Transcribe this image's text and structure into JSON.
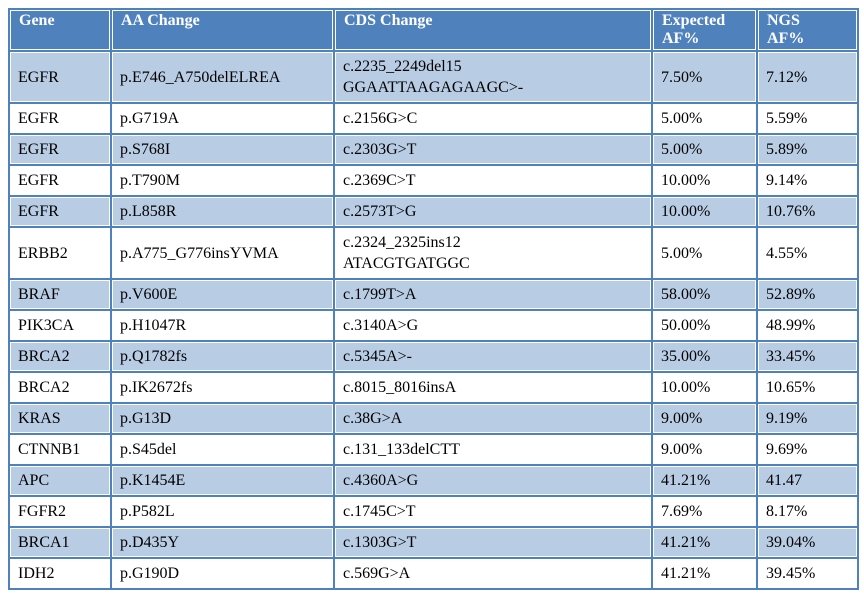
{
  "table": {
    "headers": {
      "gene": "Gene",
      "aa": "AA Change",
      "cds": "CDS Change",
      "expected": "Expected\nAF%",
      "ngs": "NGS\nAF%"
    },
    "rows": [
      {
        "gene": "EGFR",
        "aa": "p.E746_A750delELREA",
        "cds": "c.2235_2249del15\nGGAATTAAGAGAAGC>-",
        "expected": "7.50%",
        "ngs": "7.12%"
      },
      {
        "gene": "EGFR",
        "aa": "p.G719A",
        "cds": "c.2156G>C",
        "expected": "5.00%",
        "ngs": "5.59%"
      },
      {
        "gene": "EGFR",
        "aa": "p.S768I",
        "cds": "c.2303G>T",
        "expected": "5.00%",
        "ngs": "5.89%"
      },
      {
        "gene": "EGFR",
        "aa": "p.T790M",
        "cds": "c.2369C>T",
        "expected": "10.00%",
        "ngs": "9.14%"
      },
      {
        "gene": "EGFR",
        "aa": "p.L858R",
        "cds": "c.2573T>G",
        "expected": "10.00%",
        "ngs": "10.76%"
      },
      {
        "gene": "ERBB2",
        "aa": "p.A775_G776insYVMA",
        "cds": "c.2324_2325ins12\nATACGTGATGGC",
        "expected": "5.00%",
        "ngs": "4.55%"
      },
      {
        "gene": "BRAF",
        "aa": "p.V600E",
        "cds": "c.1799T>A",
        "expected": "58.00%",
        "ngs": "52.89%"
      },
      {
        "gene": "PIK3CA",
        "aa": "p.H1047R",
        "cds": "c.3140A>G",
        "expected": "50.00%",
        "ngs": "48.99%"
      },
      {
        "gene": "BRCA2",
        "aa": "p.Q1782fs",
        "cds": "c.5345A>-",
        "expected": "35.00%",
        "ngs": "33.45%"
      },
      {
        "gene": "BRCA2",
        "aa": "p.IK2672fs",
        "cds": "c.8015_8016insA",
        "expected": "10.00%",
        "ngs": "10.65%"
      },
      {
        "gene": "KRAS",
        "aa": "p.G13D",
        "cds": "c.38G>A",
        "expected": "9.00%",
        "ngs": "9.19%"
      },
      {
        "gene": "CTNNB1",
        "aa": "p.S45del",
        "cds": "c.131_133delCTT",
        "expected": "9.00%",
        "ngs": "9.69%"
      },
      {
        "gene": "APC",
        "aa": "p.K1454E",
        "cds": "c.4360A>G",
        "expected": "41.21%",
        "ngs": "41.47"
      },
      {
        "gene": "FGFR2",
        "aa": "p.P582L",
        "cds": "c.1745C>T",
        "expected": "7.69%",
        "ngs": "8.17%"
      },
      {
        "gene": "BRCA1",
        "aa": "p.D435Y",
        "cds": "c.1303G>T",
        "expected": "41.21%",
        "ngs": "39.04%"
      },
      {
        "gene": "IDH2",
        "aa": "p.G190D",
        "cds": "c.569G>A",
        "expected": "41.21%",
        "ngs": "39.45%"
      }
    ],
    "colors": {
      "header_bg": "#4F81BD",
      "band_row_bg": "#B8CCE4",
      "plain_row_bg": "#FFFFFF",
      "border": "#4F81BD",
      "header_text": "#FFFFFF",
      "body_text": "#000000"
    }
  }
}
